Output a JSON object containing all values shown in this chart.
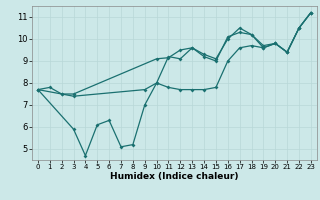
{
  "xlabel": "Humidex (Indice chaleur)",
  "background_color": "#cce8e8",
  "grid_color": "#b8d8d8",
  "line_color": "#1a7070",
  "xlim": [
    -0.5,
    23.5
  ],
  "ylim": [
    4.5,
    11.5
  ],
  "xticks": [
    0,
    1,
    2,
    3,
    4,
    5,
    6,
    7,
    8,
    9,
    10,
    11,
    12,
    13,
    14,
    15,
    16,
    17,
    18,
    19,
    20,
    21,
    22,
    23
  ],
  "yticks": [
    5,
    6,
    7,
    8,
    9,
    10,
    11
  ],
  "line1_x": [
    0,
    1,
    2,
    3,
    10,
    11,
    12,
    13,
    14,
    15,
    16,
    17,
    18,
    19,
    20,
    21,
    22,
    23
  ],
  "line1_y": [
    7.7,
    7.8,
    7.5,
    7.5,
    9.1,
    9.15,
    9.5,
    9.6,
    9.3,
    9.1,
    10.0,
    10.5,
    10.2,
    9.7,
    9.8,
    9.4,
    10.5,
    11.2
  ],
  "line2_x": [
    0,
    2,
    3,
    9,
    10,
    11,
    12,
    13,
    14,
    15,
    16,
    17,
    18,
    19,
    20,
    21,
    22,
    23
  ],
  "line2_y": [
    7.7,
    7.5,
    7.4,
    7.7,
    8.0,
    9.2,
    9.1,
    9.6,
    9.2,
    9.0,
    10.1,
    10.3,
    10.2,
    9.6,
    9.8,
    9.4,
    10.5,
    11.2
  ],
  "line3_x": [
    0,
    3,
    4,
    5,
    6,
    7,
    8,
    9,
    10,
    11,
    12,
    13,
    14,
    15,
    16,
    17,
    18,
    19,
    20,
    21,
    22,
    23
  ],
  "line3_y": [
    7.7,
    5.9,
    4.7,
    6.1,
    6.3,
    5.1,
    5.2,
    7.0,
    8.0,
    7.8,
    7.7,
    7.7,
    7.7,
    7.8,
    9.0,
    9.6,
    9.7,
    9.6,
    9.8,
    9.4,
    10.5,
    11.2
  ],
  "xlabel_fontsize": 6.5,
  "tick_fontsize_x": 5.0,
  "tick_fontsize_y": 6.0,
  "linewidth": 0.9,
  "markersize": 2.0
}
